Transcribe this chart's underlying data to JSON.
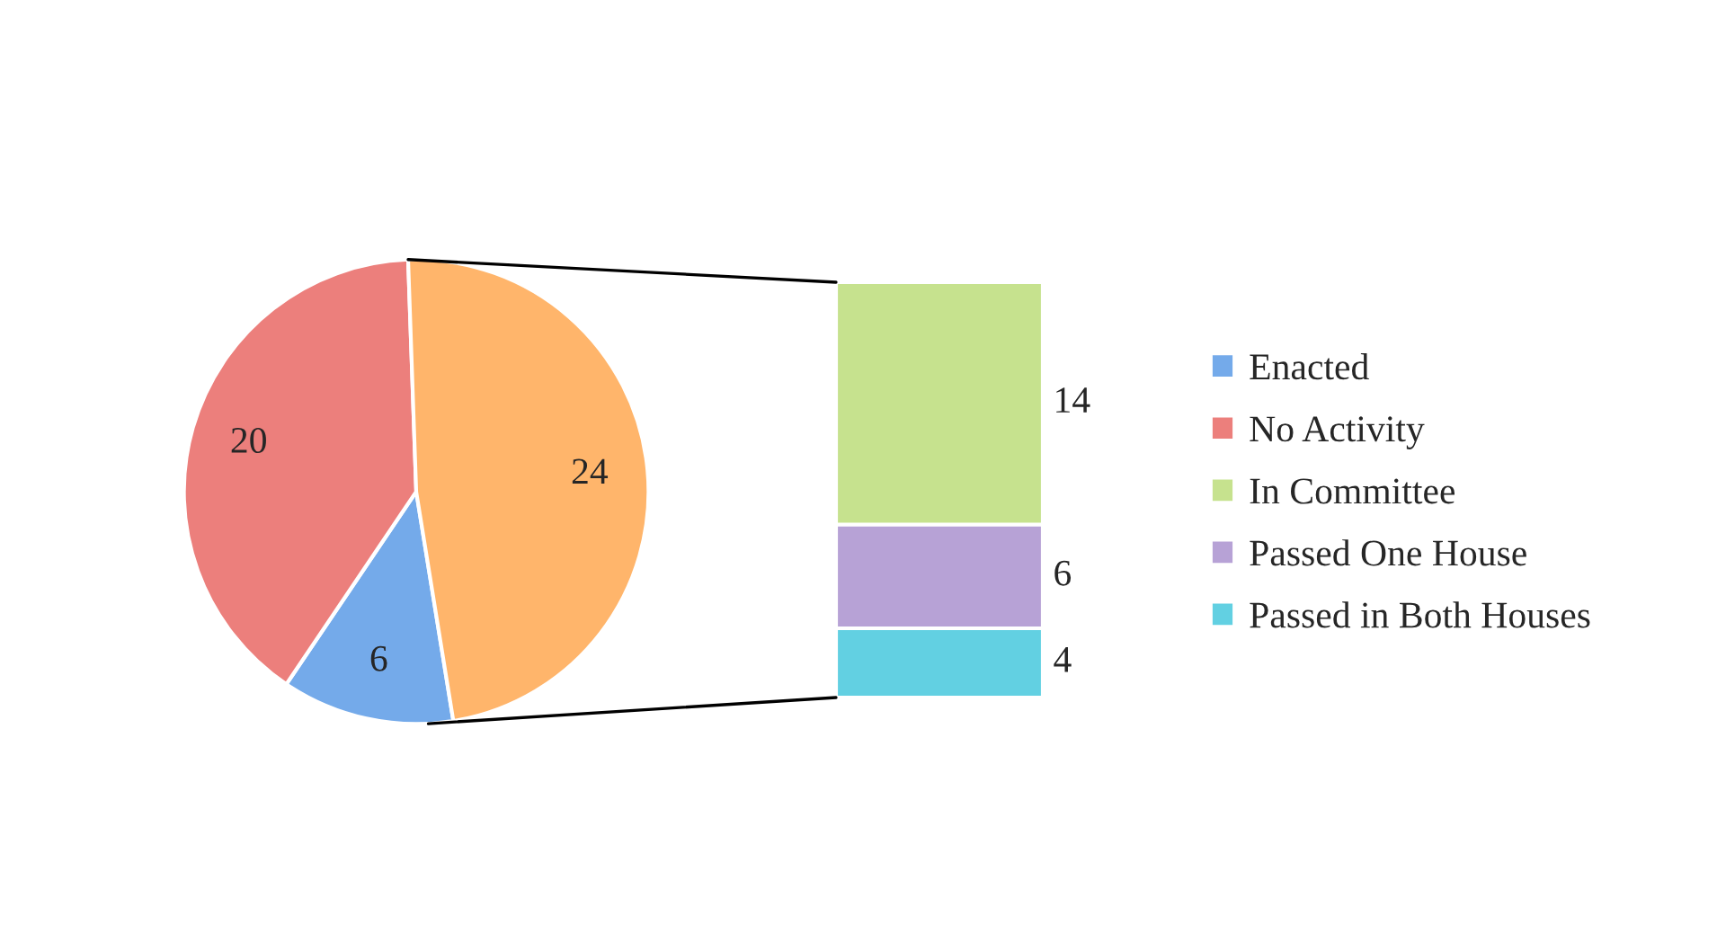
{
  "chart_data": [
    {
      "type": "pie",
      "categories": [
        "Enacted",
        "No Activity",
        null
      ],
      "values": [
        6,
        20,
        24
      ],
      "colors": [
        "#74aaea",
        "#ec7f7c",
        "#ffb56b"
      ],
      "data_labels": true,
      "legend": "right"
    },
    {
      "type": "bar",
      "stacked": true,
      "categories": [
        null
      ],
      "data_labels": true,
      "legend": "right",
      "series": [
        {
          "name": "Passed in Both Houses",
          "color": "#62d0e2",
          "values": [
            4
          ]
        },
        {
          "name": "Passed One House",
          "color": "#b7a2d6",
          "values": [
            6
          ]
        },
        {
          "name": "In Committee",
          "color": "#c6e28e",
          "values": [
            14
          ]
        }
      ]
    }
  ]
}
